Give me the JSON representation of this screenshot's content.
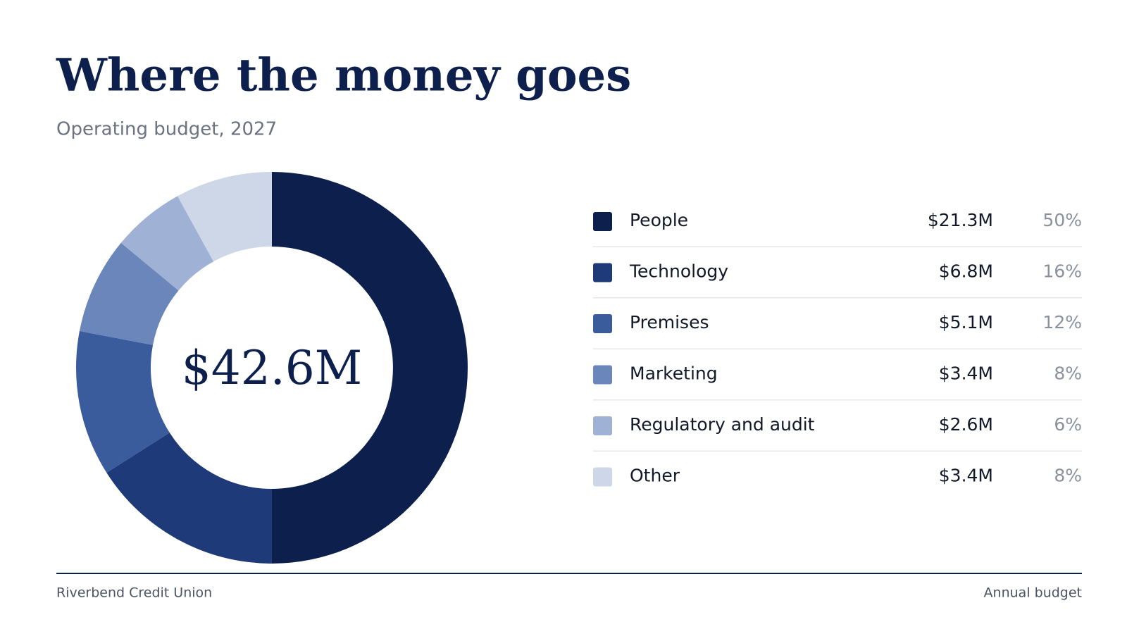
{
  "chart_data": {
    "type": "donut",
    "title": "Where the money goes",
    "subtitle": "Operating budget, 2027",
    "center_label": "$42.6M",
    "categories": [
      "People",
      "Technology",
      "Premises",
      "Marketing",
      "Regulatory and audit",
      "Other"
    ],
    "values": [
      50,
      16,
      12,
      8,
      6,
      8
    ],
    "value_labels": [
      "50%",
      "16%",
      "12%",
      "8%",
      "6%",
      "8%"
    ],
    "amounts": [
      "$21.3M",
      "$6.8M",
      "$5.1M",
      "$3.4M",
      "$2.6M",
      "$3.4M"
    ],
    "colors": [
      "#0d1f4c",
      "#1f3a78",
      "#3a5b9c",
      "#6b86bb",
      "#9fb2d5",
      "#cdd7e8"
    ]
  },
  "footer": {
    "left": "Riverbend Credit Union",
    "right": "Annual budget"
  }
}
